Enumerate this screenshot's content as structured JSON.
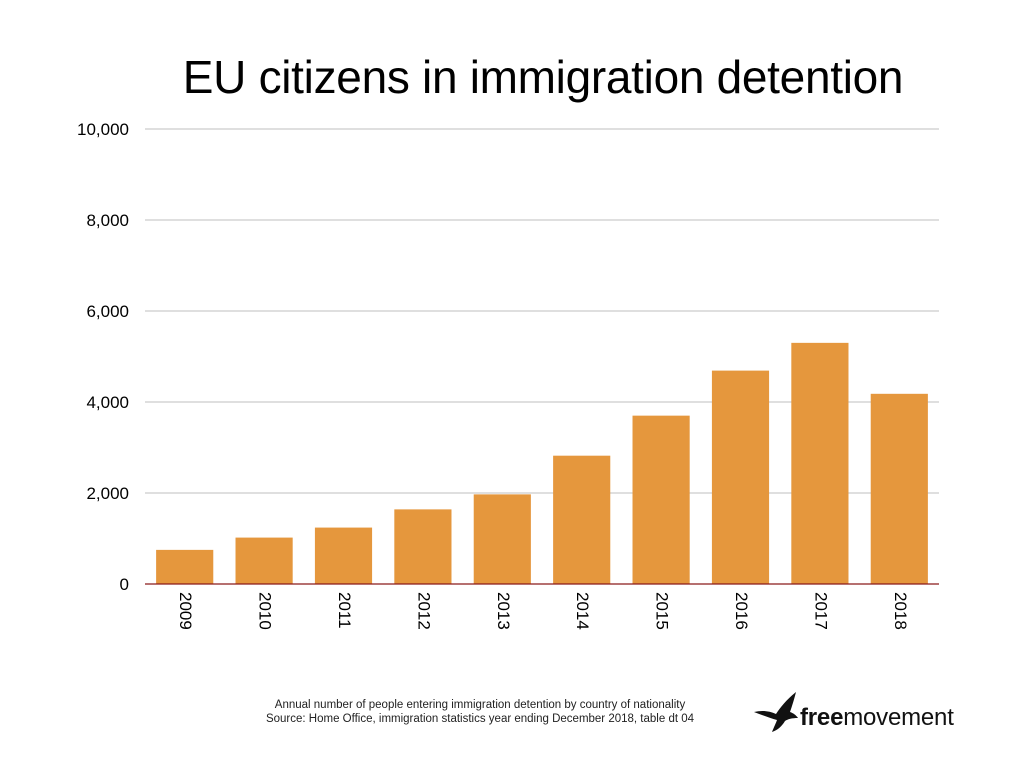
{
  "chart_data": {
    "type": "bar",
    "title": "EU citizens in immigration detention",
    "categories": [
      "2009",
      "2010",
      "2011",
      "2012",
      "2013",
      "2014",
      "2015",
      "2016",
      "2017",
      "2018"
    ],
    "values": [
      750,
      1020,
      1240,
      1640,
      1970,
      2820,
      3700,
      4690,
      5300,
      4180
    ],
    "ylim": [
      0,
      10000
    ],
    "yticks": [
      "0",
      "2,000",
      "4,000",
      "6,000",
      "8,000",
      "10,000"
    ],
    "xlabel": "",
    "ylabel": "",
    "grid": true,
    "bar_color": "#e5973d",
    "gridline_color": "#bfbfbf"
  },
  "footnote": {
    "line1": "Annual number of people entering immigration detention by country of nationality",
    "line2": "Source: Home Office, immigration statistics year ending December 2018, table dt 04"
  },
  "logo": {
    "icon": "bird-icon",
    "text_bold": "free",
    "text_regular": "movement"
  }
}
